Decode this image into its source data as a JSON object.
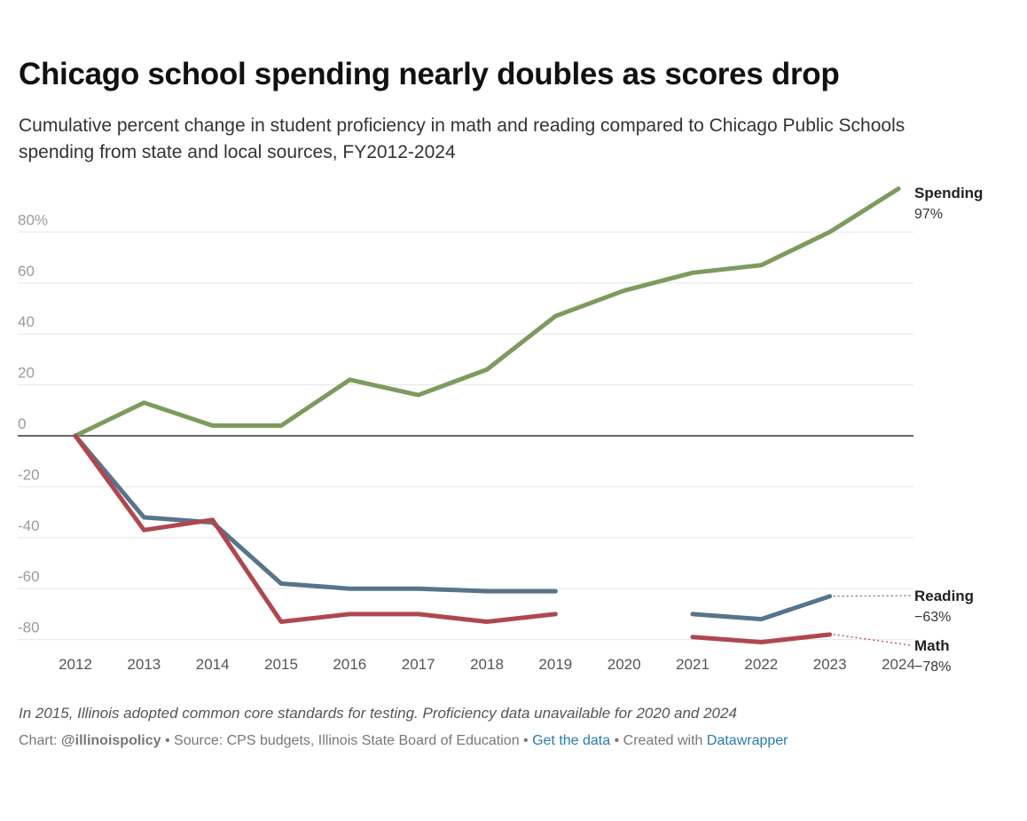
{
  "title": "Chicago school spending nearly doubles as scores drop",
  "subtitle": "Cumulative percent change in student proficiency in math and reading compared to Chicago Public Schools spending from state and local sources, FY2012-2024",
  "note": "In 2015, Illinois adopted common core standards for testing. Proficiency data unavailable for 2020 and 2024",
  "credits": {
    "chart_prefix": "Chart: ",
    "chart_author": "@illinoispolicy",
    "source": " • Source: CPS budgets, Illinois State Board of Education • ",
    "get_data": "Get the data",
    "created_with": " • Created with ",
    "datawrapper": "Datawrapper"
  },
  "chart_data": {
    "type": "line",
    "x": [
      2012,
      2013,
      2014,
      2015,
      2016,
      2017,
      2018,
      2019,
      2020,
      2021,
      2022,
      2023,
      2024
    ],
    "ylim": [
      -80,
      97
    ],
    "yticks": [
      {
        "value": 80,
        "label": "80%"
      },
      {
        "value": 60,
        "label": "60"
      },
      {
        "value": 40,
        "label": "40"
      },
      {
        "value": 20,
        "label": "20"
      },
      {
        "value": 0,
        "label": "0"
      },
      {
        "value": -20,
        "label": "-20"
      },
      {
        "value": -40,
        "label": "-40"
      },
      {
        "value": -60,
        "label": "-60"
      },
      {
        "value": -80,
        "label": "-80"
      }
    ],
    "grid": true,
    "series": [
      {
        "name": "Spending",
        "end_label": "97%",
        "color": "#7d9b5e",
        "values": [
          0,
          13,
          4,
          4,
          22,
          16,
          26,
          47,
          57,
          64,
          67,
          80,
          97
        ]
      },
      {
        "name": "Reading",
        "end_label": "−63%",
        "color": "#58748a",
        "values": [
          0,
          -32,
          -34,
          -58,
          -60,
          -60,
          -61,
          -61,
          null,
          -70,
          -72,
          -63,
          null
        ]
      },
      {
        "name": "Math",
        "end_label": "−78%",
        "color": "#b0474e",
        "values": [
          0,
          -37,
          -33,
          -73,
          -70,
          -70,
          -73,
          -70,
          null,
          -79,
          -81,
          -78,
          null
        ]
      }
    ]
  }
}
